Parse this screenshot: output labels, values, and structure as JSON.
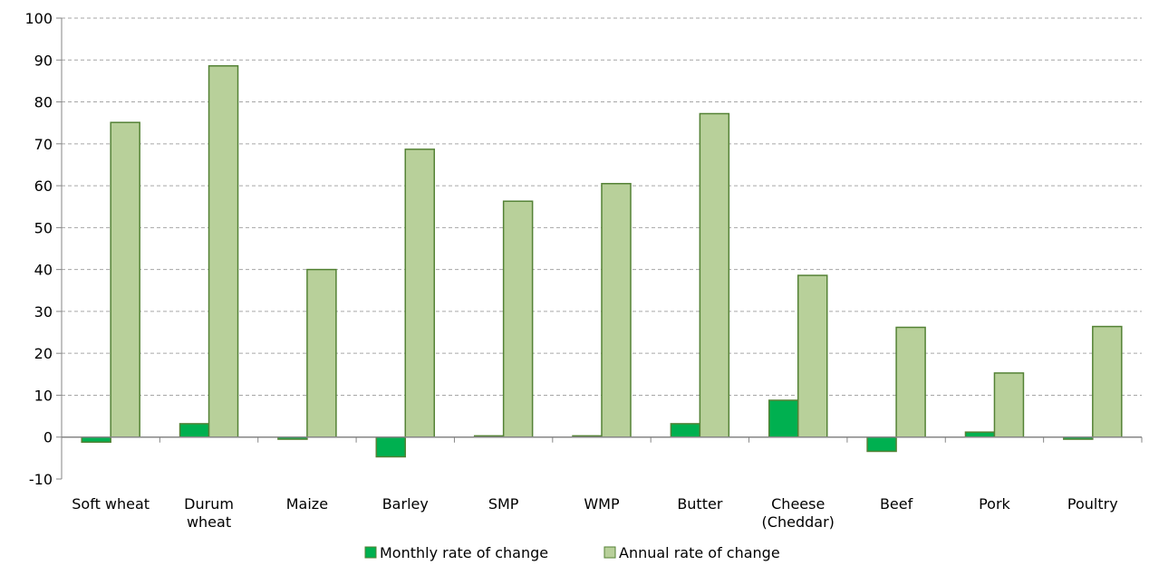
{
  "chart_data": {
    "type": "bar",
    "categories": [
      [
        "Soft wheat"
      ],
      [
        "Durum",
        "wheat"
      ],
      [
        "Maize"
      ],
      [
        "Barley"
      ],
      [
        "SMP"
      ],
      [
        "WMP"
      ],
      [
        "Butter"
      ],
      [
        "Cheese",
        "(Cheddar)"
      ],
      [
        "Beef"
      ],
      [
        "Pork"
      ],
      [
        "Poultry"
      ]
    ],
    "series": [
      {
        "name": "Monthly rate of change",
        "color": "#00b050",
        "border": "#548235",
        "values": [
          -1.2,
          3.2,
          -0.5,
          -4.7,
          0.3,
          0.3,
          3.2,
          8.8,
          -3.4,
          1.2,
          -0.5
        ]
      },
      {
        "name": "Annual rate of change",
        "color": "#b8d09a",
        "border": "#548235",
        "values": [
          75.1,
          88.6,
          40.0,
          68.7,
          56.3,
          60.5,
          77.2,
          38.6,
          26.2,
          15.3,
          26.4
        ]
      }
    ],
    "ylim": [
      -10,
      100
    ],
    "yticks": [
      -10,
      0,
      10,
      20,
      30,
      40,
      50,
      60,
      70,
      80,
      90,
      100
    ],
    "grid": true,
    "legend_position": "bottom",
    "xlabel": "",
    "ylabel": "",
    "title": ""
  }
}
